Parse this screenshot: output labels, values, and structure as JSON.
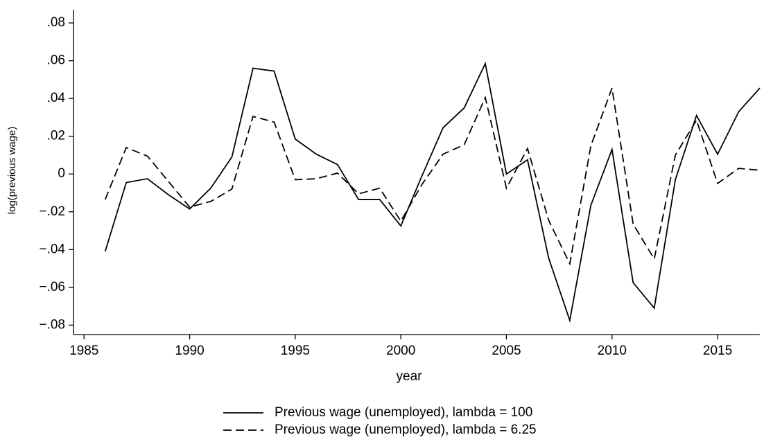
{
  "chart_data": {
    "type": "line",
    "x_label": "year",
    "y_label": "log(previous wage)",
    "x": [
      1986,
      1987,
      1988,
      1989,
      1990,
      1991,
      1992,
      1993,
      1994,
      1995,
      1996,
      1997,
      1998,
      1999,
      2000,
      2001,
      2002,
      2003,
      2004,
      2005,
      2006,
      2007,
      2008,
      2009,
      2010,
      2011,
      2012,
      2013,
      2014,
      2015,
      2016,
      2017
    ],
    "series": [
      {
        "name": "Previous wage (unemployed), lambda = 100",
        "color": "#000000",
        "style": "solid",
        "values": [
          -0.041,
          -0.0045,
          -0.0025,
          -0.011,
          -0.0185,
          -0.0075,
          0.009,
          0.056,
          0.0545,
          0.0185,
          0.0105,
          0.005,
          -0.0135,
          -0.0135,
          -0.0275,
          -0.001,
          0.0245,
          0.035,
          0.0585,
          0.0,
          0.0075,
          -0.0445,
          -0.0775,
          -0.0165,
          0.013,
          -0.0575,
          -0.071,
          -0.003,
          0.031,
          0.0105,
          0.033,
          0.0455
        ]
      },
      {
        "name": "Previous wage (unemployed), lambda = 6.25",
        "color": "#000000",
        "style": "dashed",
        "values": [
          -0.0135,
          0.014,
          0.0095,
          -0.004,
          -0.0175,
          -0.0145,
          -0.008,
          0.0305,
          0.0275,
          -0.003,
          -0.0025,
          0.0005,
          -0.0105,
          -0.0075,
          -0.025,
          -0.0055,
          0.0105,
          0.0155,
          0.0405,
          -0.0075,
          0.0135,
          -0.0245,
          -0.0475,
          0.015,
          0.0455,
          -0.0265,
          -0.045,
          0.01,
          0.0285,
          -0.005,
          0.003,
          0.002
        ]
      }
    ],
    "xlim": [
      1984.5,
      2017
    ],
    "ylim": [
      -0.085,
      0.087
    ],
    "xticks": [
      1985,
      1990,
      1995,
      2000,
      2005,
      2010,
      2015
    ],
    "yticks": [
      {
        "value": -0.08,
        "label": "−.08"
      },
      {
        "value": -0.06,
        "label": "−.06"
      },
      {
        "value": -0.04,
        "label": "−.04"
      },
      {
        "value": -0.02,
        "label": "−.02"
      },
      0,
      {
        "value": 0.02,
        "label": ".02"
      },
      {
        "value": 0.04,
        "label": ".04"
      },
      {
        "value": 0.06,
        "label": ".06"
      },
      {
        "value": 0.08,
        "label": ".08"
      }
    ],
    "legend": "bottom"
  }
}
